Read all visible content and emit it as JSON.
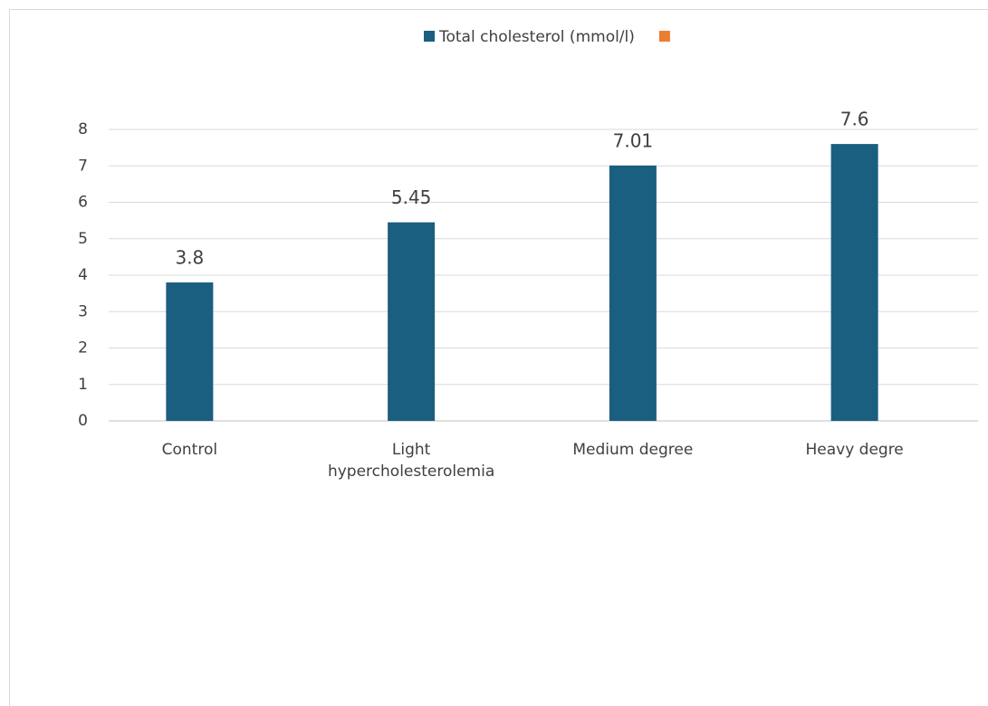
{
  "chart_data": {
    "type": "bar",
    "categories": [
      "Control",
      "Light hypercholesterolemia",
      "Medium degree",
      "Heavy degre"
    ],
    "series": [
      {
        "name": "Total cholesterol (mmol/l)",
        "color": "#1a5e80",
        "values": [
          3.8,
          5.45,
          7.01,
          7.6
        ]
      },
      {
        "color": "#ed7d31",
        "values": [
          null,
          null,
          null,
          null
        ]
      }
    ],
    "ylim": [
      0,
      8
    ],
    "yticks": [
      0,
      1,
      2,
      3,
      4,
      5,
      6,
      7,
      8
    ],
    "grid": true,
    "legend": "top"
  }
}
